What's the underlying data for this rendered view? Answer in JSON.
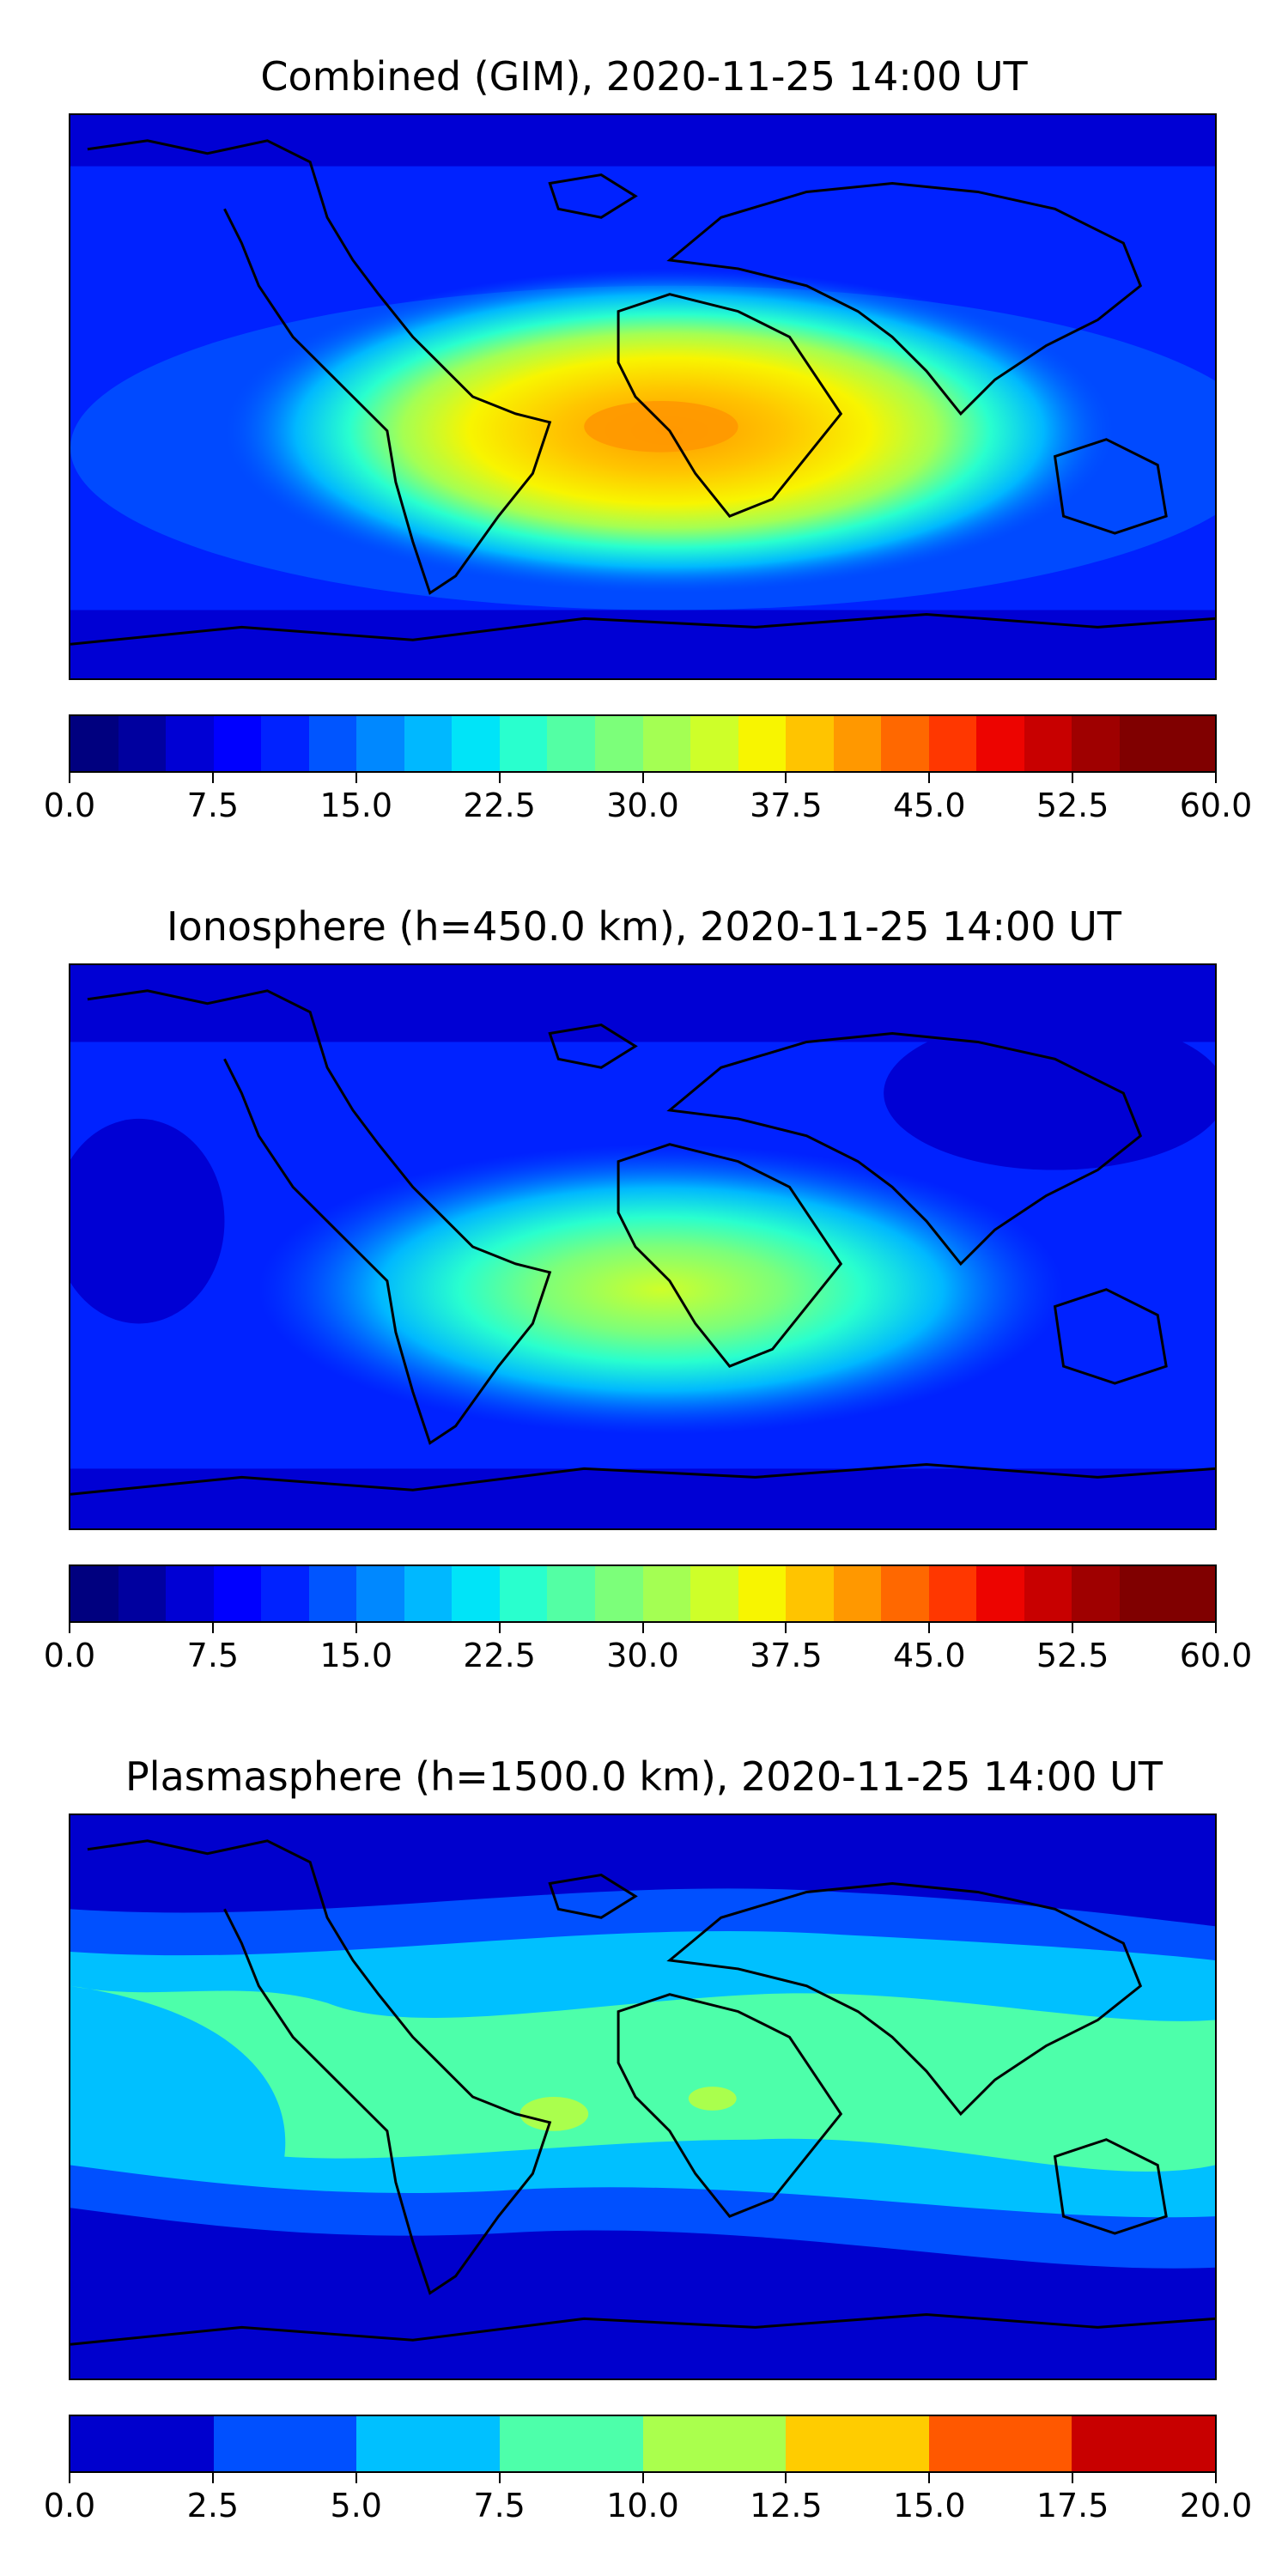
{
  "panels": [
    {
      "title": "Combined (GIM), 2020-11-25 14:00 UT",
      "colorbar": {
        "min": 0.0,
        "max": 60.0,
        "levels": 24,
        "colors": [
          "#00007f",
          "#00009f",
          "#0000d4",
          "#0000ff",
          "#0022ff",
          "#0055ff",
          "#0088ff",
          "#00b8ff",
          "#00e4f8",
          "#29ffce",
          "#53ffa4",
          "#7cff7a",
          "#a4ff53",
          "#ceff29",
          "#f8f500",
          "#ffc400",
          "#ff9800",
          "#ff6800",
          "#ff3700",
          "#ed0400",
          "#c80000",
          "#9f0000",
          "#800000",
          "#800000"
        ],
        "ticks": [
          "0.0",
          "7.5",
          "15.0",
          "22.5",
          "30.0",
          "37.5",
          "45.0",
          "52.5",
          "60.0"
        ]
      }
    },
    {
      "title": "Ionosphere  (h=450.0 km), 2020-11-25 14:00 UT",
      "colorbar": {
        "min": 0.0,
        "max": 60.0,
        "levels": 24,
        "colors": [
          "#00007f",
          "#00009f",
          "#0000d4",
          "#0000ff",
          "#0022ff",
          "#0055ff",
          "#0088ff",
          "#00b8ff",
          "#00e4f8",
          "#29ffce",
          "#53ffa4",
          "#7cff7a",
          "#a4ff53",
          "#ceff29",
          "#f8f500",
          "#ffc400",
          "#ff9800",
          "#ff6800",
          "#ff3700",
          "#ed0400",
          "#c80000",
          "#9f0000",
          "#800000",
          "#800000"
        ],
        "ticks": [
          "0.0",
          "7.5",
          "15.0",
          "22.5",
          "30.0",
          "37.5",
          "45.0",
          "52.5",
          "60.0"
        ]
      }
    },
    {
      "title": "Plasmasphere (h=1500.0 km), 2020-11-25 14:00 UT",
      "colorbar": {
        "min": 0.0,
        "max": 20.0,
        "levels": 8,
        "colors": [
          "#0000cd",
          "#0050ff",
          "#00c0ff",
          "#4dffaa",
          "#aaff4d",
          "#ffcc00",
          "#ff5800",
          "#c80000"
        ],
        "ticks": [
          "0.0",
          "2.5",
          "5.0",
          "7.5",
          "10.0",
          "12.5",
          "15.0",
          "17.5",
          "20.0"
        ]
      }
    }
  ],
  "map_colors": {
    "ocean_low": "#0000ff",
    "polar": "#0000c0",
    "coast": "#000000"
  }
}
